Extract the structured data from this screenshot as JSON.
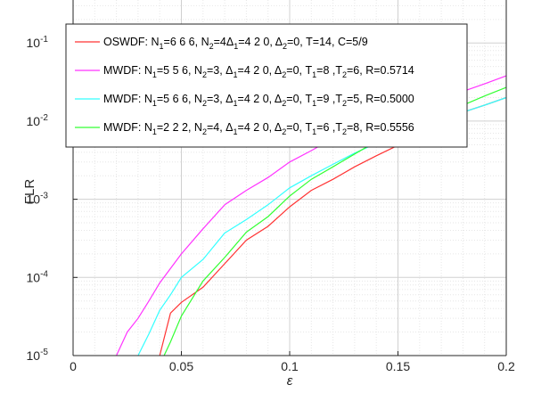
{
  "chart_data": {
    "type": "line",
    "xlabel": "ε",
    "ylabel": "FLR",
    "xlim": [
      0,
      0.2
    ],
    "ylim": [
      1e-05,
      0.1
    ],
    "yscale": "log",
    "grid": true,
    "legend_position": "top-right",
    "x_ticks": [
      "0",
      "0.05",
      "0.1",
      "0.15",
      "0.2"
    ],
    "y_ticks": [
      {
        "base": "10",
        "exp": "-5",
        "value": 1e-05
      },
      {
        "base": "10",
        "exp": "-4",
        "value": 0.0001
      },
      {
        "base": "10",
        "exp": "-3",
        "value": 0.001
      },
      {
        "base": "10",
        "exp": "-2",
        "value": 0.01
      },
      {
        "base": "10",
        "exp": "-1",
        "value": 0.1
      }
    ],
    "series": [
      {
        "name": "OSWDF: N1=6 6 6, N2=4Δ1=4 2 0, Δ2=0, T=14, C=5/9",
        "color": "#ff3333",
        "x": [
          0.04,
          0.045,
          0.05,
          0.06,
          0.07,
          0.08,
          0.09,
          0.1,
          0.11,
          0.12,
          0.13,
          0.14,
          0.15,
          0.16,
          0.17,
          0.18,
          0.19,
          0.2
        ],
        "y": [
          1e-05,
          3.5e-05,
          4.8e-05,
          7.5e-05,
          0.00015,
          0.0003,
          0.00045,
          0.0008,
          0.0013,
          0.0018,
          0.0026,
          0.0036,
          0.0049,
          0.0065,
          0.0092,
          0.013,
          0.016,
          0.02
        ]
      },
      {
        "name": "MWDF: N1=5 5 6, N2=3, Δ1=4 2 0, Δ2=0, T1=8 ,T2=6, R=0.5714",
        "color": "#ff33ff",
        "x": [
          0.02,
          0.025,
          0.03,
          0.035,
          0.04,
          0.05,
          0.06,
          0.07,
          0.08,
          0.09,
          0.1,
          0.11,
          0.12,
          0.13,
          0.14,
          0.15,
          0.16,
          0.17,
          0.18,
          0.19,
          0.2
        ],
        "y": [
          1e-05,
          2e-05,
          3e-05,
          5e-05,
          8.5e-05,
          0.0002,
          0.00042,
          0.00085,
          0.0013,
          0.0019,
          0.003,
          0.0042,
          0.006,
          0.0078,
          0.01,
          0.013,
          0.016,
          0.02,
          0.024,
          0.03,
          0.038
        ]
      },
      {
        "name": "MWDF: N1=5 6 6, N2=3, Δ1=4 2 0, Δ2=0, T1=9 ,T2=5, R=0.5000",
        "color": "#33ffff",
        "x": [
          0.03,
          0.035,
          0.04,
          0.045,
          0.05,
          0.06,
          0.07,
          0.08,
          0.09,
          0.1,
          0.11,
          0.12,
          0.13,
          0.14,
          0.15,
          0.16,
          0.17,
          0.18,
          0.19,
          0.2
        ],
        "y": [
          1e-05,
          1.9e-05,
          3.8e-05,
          6e-05,
          0.0001,
          0.00017,
          0.00037,
          0.00055,
          0.00085,
          0.0014,
          0.002,
          0.0028,
          0.0039,
          0.0052,
          0.0068,
          0.0085,
          0.011,
          0.013,
          0.016,
          0.02
        ]
      },
      {
        "name": "MWDF: N1=2 2 2, N2=4, Δ1=4 2 0, Δ2=0, T1=6 ,T2=8, R=0.5556",
        "color": "#33ff33",
        "x": [
          0.042,
          0.045,
          0.05,
          0.06,
          0.07,
          0.08,
          0.09,
          0.1,
          0.11,
          0.12,
          0.13,
          0.14,
          0.15,
          0.16,
          0.17,
          0.18,
          0.19,
          0.2
        ],
        "y": [
          1e-05,
          1.5e-05,
          3.2e-05,
          9e-05,
          0.00018,
          0.00038,
          0.0006,
          0.0011,
          0.0018,
          0.0026,
          0.0038,
          0.0055,
          0.0072,
          0.0098,
          0.013,
          0.016,
          0.021,
          0.027
        ]
      }
    ],
    "legend": [
      {
        "parts": [
          [
            "OSWDF: N",
            ""
          ],
          [
            "1",
            "sub"
          ],
          [
            "=6  6  6, N",
            ""
          ],
          [
            "2",
            "sub"
          ],
          [
            "=4Δ",
            ""
          ],
          [
            "1",
            "sub"
          ],
          [
            "=4  2  0, Δ",
            ""
          ],
          [
            "2",
            "sub"
          ],
          [
            "=0, T=14, C=5/9",
            ""
          ]
        ]
      },
      {
        "parts": [
          [
            "MWDF: N",
            ""
          ],
          [
            "1",
            "sub"
          ],
          [
            "=5  5  6, N",
            ""
          ],
          [
            "2",
            "sub"
          ],
          [
            "=3, Δ",
            ""
          ],
          [
            "1",
            "sub"
          ],
          [
            "=4  2  0, Δ",
            ""
          ],
          [
            "2",
            "sub"
          ],
          [
            "=0, T",
            ""
          ],
          [
            "1",
            "sub"
          ],
          [
            "=8 ,T",
            ""
          ],
          [
            "2",
            "sub"
          ],
          [
            "=6, R=0.5714",
            ""
          ]
        ]
      },
      {
        "parts": [
          [
            "MWDF: N",
            ""
          ],
          [
            "1",
            "sub"
          ],
          [
            "=5  6  6, N",
            ""
          ],
          [
            "2",
            "sub"
          ],
          [
            "=3, Δ",
            ""
          ],
          [
            "1",
            "sub"
          ],
          [
            "=4  2  0, Δ",
            ""
          ],
          [
            "2",
            "sub"
          ],
          [
            "=0, T",
            ""
          ],
          [
            "1",
            "sub"
          ],
          [
            "=9 ,T",
            ""
          ],
          [
            "2",
            "sub"
          ],
          [
            "=5, R=0.5000",
            ""
          ]
        ]
      },
      {
        "parts": [
          [
            "MWDF: N",
            ""
          ],
          [
            "1",
            "sub"
          ],
          [
            "=2  2  2, N",
            ""
          ],
          [
            "2",
            "sub"
          ],
          [
            "=4, Δ",
            ""
          ],
          [
            "1",
            "sub"
          ],
          [
            "=4  2  0, Δ",
            ""
          ],
          [
            "2",
            "sub"
          ],
          [
            "=0, T",
            ""
          ],
          [
            "1",
            "sub"
          ],
          [
            "=6 ,T",
            ""
          ],
          [
            "2",
            "sub"
          ],
          [
            "=8, R=0.5556",
            ""
          ]
        ]
      }
    ]
  }
}
